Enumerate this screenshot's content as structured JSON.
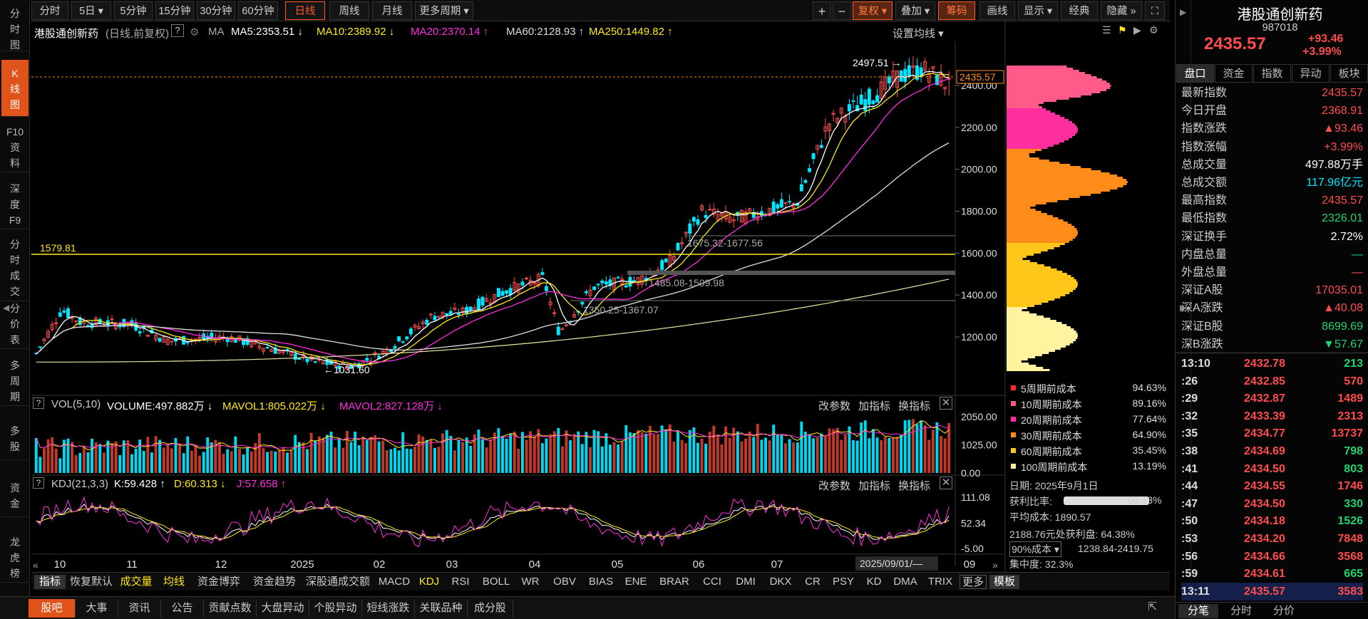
{
  "left_tabs": [
    {
      "label": "分\n时\n图",
      "active": false
    },
    {
      "label": "K\n线\n图",
      "active": true
    },
    {
      "label": "F10\n资\n料",
      "active": false
    },
    {
      "label": "深\n度\nF9",
      "active": false
    },
    {
      "label": "分\n时\n成\n交",
      "active": false
    },
    {
      "label": "分\n价\n表",
      "active": false
    },
    {
      "label": "多\n周\n期",
      "active": false
    },
    {
      "label": "多\n股",
      "active": false
    },
    {
      "label": "资\n金",
      "active": false
    },
    {
      "label": "龙\n虎\n榜",
      "active": false
    }
  ],
  "toolbar": {
    "periods": [
      "分时",
      "5日 ▾",
      "5分钟",
      "15分钟",
      "30分钟",
      "60分钟",
      "日线",
      "周线",
      "月线",
      "更多周期 ▾"
    ],
    "active_period": "日线",
    "right": [
      "+",
      "−",
      "复权 ▾",
      "叠加 ▾",
      "筹码",
      "画线",
      "显示 ▾",
      "经典",
      "隐藏 »",
      "⛶"
    ]
  },
  "ma_line": {
    "name": "港股通创新药",
    "mode": "(日线,前复权)",
    "ma_label": "MA",
    "ma5": "MA5:2353.51 ↓",
    "ma10": "MA10:2389.92 ↓",
    "ma20": "MA20:2370.14 ↑",
    "ma60": "MA60:2128.93 ↑",
    "ma250": "MA250:1449.82 ↑",
    "setting": "设置均线 ▾"
  },
  "main_chart": {
    "y_ticks": [
      "2400.00",
      "2200.00",
      "2000.00",
      "1800.00",
      "1600.00",
      "1400.00",
      "1200.00"
    ],
    "current_price_tag": "2435.57",
    "high_label": "2497.51 →",
    "low_label": "←1031.60",
    "hline_label": "1579.81",
    "gap_labels": [
      "1675.32-1677.56",
      "1485.08-1509.98",
      "1350.25-1367.07"
    ]
  },
  "chip_legend": [
    {
      "label": "5周期前成本",
      "value": "94.63%",
      "color": "#ff2a2a"
    },
    {
      "label": "10周期前成本",
      "value": "89.16%",
      "color": "#ff5a8a"
    },
    {
      "label": "20周期前成本",
      "value": "77.64%",
      "color": "#ff2e9e"
    },
    {
      "label": "30周期前成本",
      "value": "64.90%",
      "color": "#ff8c1a"
    },
    {
      "label": "60周期前成本",
      "value": "35.45%",
      "color": "#ffc61a"
    },
    {
      "label": "100周期前成本",
      "value": "13.19%",
      "color": "#fff3a0"
    }
  ],
  "chip_info": {
    "date_label": "日期:",
    "date": "2025年9月1日",
    "profit_label": "获利比率:",
    "profit": "96.13%",
    "avg_label": "平均成本:",
    "avg": "1890.57",
    "profit_at": "2188.76元处获利盘: 64.38%",
    "cost_select": "90%成本 ▾",
    "cost_range": "1238.84-2419.75",
    "conc_label": "集中度:",
    "conc": "32.3%"
  },
  "vol_panel": {
    "title": "VOL(5,10)",
    "volume": "VOLUME:497.882万 ↓",
    "mavol1": "MAVOL1:805.022万 ↓",
    "mavol2": "MAVOL2:827.128万 ↓",
    "y_ticks": [
      "2050.00",
      "1025.00",
      "0.00"
    ],
    "actions": [
      "改参数",
      "加指标",
      "换指标"
    ]
  },
  "kdj_panel": {
    "title": "KDJ(21,3,3)",
    "k": "K:59.428 ↑",
    "d": "D:60.313 ↓",
    "j": "J:57.658 ↑",
    "y_ticks": [
      "111.08",
      "52.34",
      "-5.00"
    ],
    "actions": [
      "改参数",
      "加指标",
      "换指标"
    ]
  },
  "x_axis": {
    "labels": [
      "10",
      "11",
      "12",
      "2025",
      "02",
      "03",
      "04",
      "05",
      "06",
      "07",
      "09"
    ],
    "cursor_date": "2025/09/01/—"
  },
  "indicator_bar": [
    "指标",
    "恢复默认",
    "成交量",
    "均线",
    "资金博弈",
    "资金趋势",
    "深股通成交额",
    "MACD",
    "KDJ",
    "RSI",
    "BOLL",
    "WR",
    "OBV",
    "BIAS",
    "ENE",
    "BRAR",
    "CCI",
    "DMI",
    "DKX",
    "CR",
    "PSY",
    "KD",
    "DMA",
    "TRIX",
    "更多",
    "模板"
  ],
  "bottom_tabs": [
    "股吧",
    "大事",
    "资讯",
    "公告",
    "贡献点数",
    "大盘异动",
    "个股异动",
    "短线涨跌",
    "关联品种",
    "成分股"
  ],
  "right_panel": {
    "name": "港股通创新药",
    "code": "987018",
    "price": "2435.57",
    "change": "+93.46",
    "change_pct": "+3.99%",
    "tabs": [
      "盘口",
      "资金",
      "指数",
      "异动",
      "板块"
    ],
    "stats": [
      {
        "label": "最新指数",
        "value": "2435.57",
        "color": "#ff4d4d"
      },
      {
        "label": "今日开盘",
        "value": "2368.91",
        "color": "#ff4d4d"
      },
      {
        "label": "指数涨跌",
        "value": "▲93.46",
        "color": "#ff4d4d"
      },
      {
        "label": "指数涨幅",
        "value": "+3.99%",
        "color": "#ff4d4d"
      },
      {
        "label": "总成交量",
        "value": "497.88万手",
        "color": "#ffffff"
      },
      {
        "label": "总成交额",
        "value": "117.96亿元",
        "color": "#00e5ff"
      },
      {
        "label": "最高指数",
        "value": "2435.57",
        "color": "#ff4d4d"
      },
      {
        "label": "最低指数",
        "value": "2326.01",
        "color": "#21d46f"
      },
      {
        "label": "深证换手",
        "value": "2.72%",
        "color": "#ffffff"
      },
      {
        "label": "内盘总量",
        "value": "—",
        "color": "#21d46f"
      },
      {
        "label": "外盘总量",
        "value": "—",
        "color": "#ff4d4d"
      },
      {
        "label": "深证A股",
        "value": "17035.01",
        "color": "#ff4d4d"
      },
      {
        "label": "深A涨跌",
        "value": "▲40.08",
        "color": "#ff4d4d"
      },
      {
        "label": "深证B股",
        "value": "8699.69",
        "color": "#21d46f"
      },
      {
        "label": "深B涨跌",
        "value": "▼57.67",
        "color": "#21d46f"
      }
    ],
    "ticks": [
      {
        "time": "13:10",
        "price": "2432.78",
        "qty": "213",
        "color": "#21d46f"
      },
      {
        "time": ":26",
        "price": "2432.85",
        "qty": "570",
        "color": "#ff4d4d"
      },
      {
        "time": ":29",
        "price": "2432.87",
        "qty": "1489",
        "color": "#ff4d4d"
      },
      {
        "time": ":32",
        "price": "2433.39",
        "qty": "2313",
        "color": "#ff4d4d"
      },
      {
        "time": ":35",
        "price": "2434.77",
        "qty": "13737",
        "color": "#ff4d4d"
      },
      {
        "time": ":38",
        "price": "2434.69",
        "qty": "798",
        "color": "#21d46f"
      },
      {
        "time": ":41",
        "price": "2434.50",
        "qty": "803",
        "color": "#21d46f"
      },
      {
        "time": ":44",
        "price": "2434.55",
        "qty": "1746",
        "color": "#ff4d4d"
      },
      {
        "time": ":47",
        "price": "2434.50",
        "qty": "330",
        "color": "#21d46f"
      },
      {
        "time": ":50",
        "price": "2434.18",
        "qty": "1526",
        "color": "#21d46f"
      },
      {
        "time": ":53",
        "price": "2434.20",
        "qty": "7848",
        "color": "#ff4d4d"
      },
      {
        "time": ":56",
        "price": "2434.66",
        "qty": "3568",
        "color": "#ff4d4d"
      },
      {
        "time": ":59",
        "price": "2434.61",
        "qty": "665",
        "color": "#21d46f"
      },
      {
        "time": "13:11",
        "price": "2435.57",
        "qty": "3583",
        "color": "#ff4d4d"
      }
    ],
    "bottom_tabs": [
      "分笔",
      "分时",
      "分价"
    ]
  }
}
